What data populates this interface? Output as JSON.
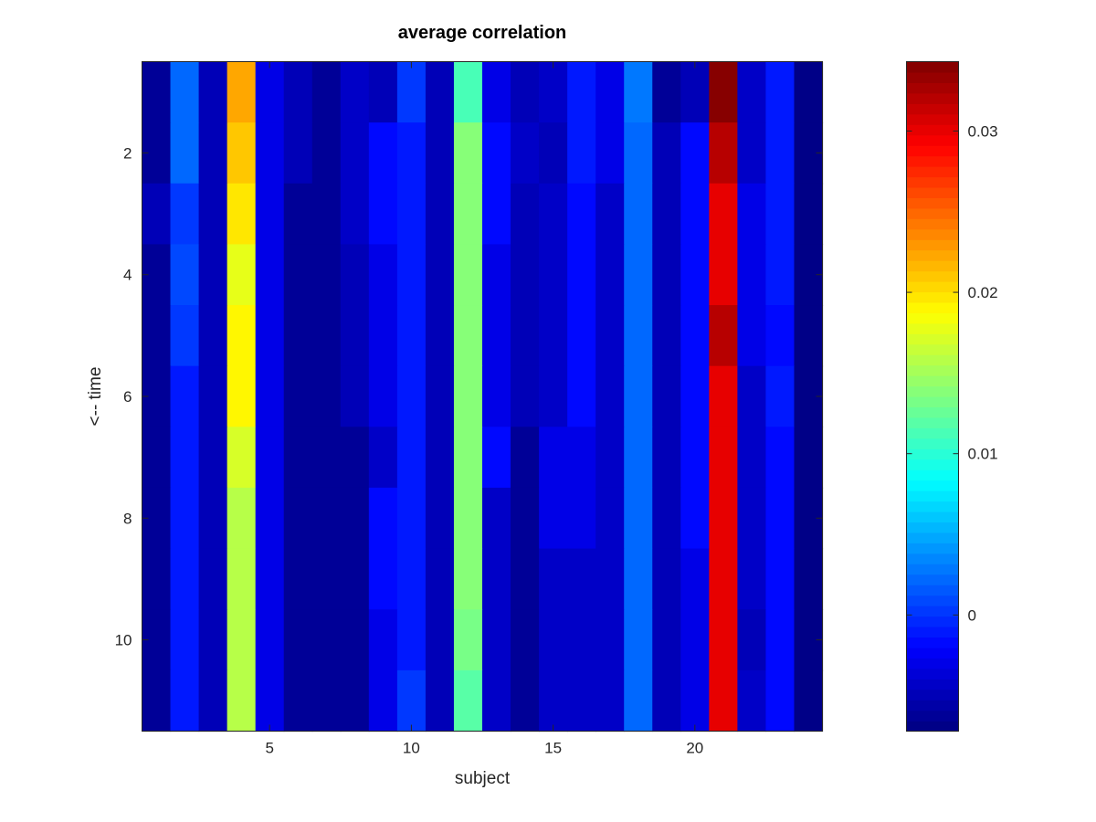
{
  "chart_data": {
    "type": "heatmap",
    "title": "average correlation",
    "xlabel": "subject",
    "ylabel": "<-- time",
    "colormap": "jet",
    "x": [
      1,
      2,
      3,
      4,
      5,
      6,
      7,
      8,
      9,
      10,
      11,
      12,
      13,
      14,
      15,
      16,
      17,
      18,
      19,
      20,
      21,
      22,
      23,
      24
    ],
    "y": [
      1,
      2,
      3,
      4,
      5,
      6,
      7,
      8,
      9,
      10,
      11
    ],
    "xlim": [
      0.5,
      24.5
    ],
    "ylim": [
      0.5,
      11.5
    ],
    "y_direction": "reverse",
    "xticks": [
      5,
      10,
      15,
      20
    ],
    "xtick_labels": [
      "5",
      "10",
      "15",
      "20"
    ],
    "yticks": [
      2,
      4,
      6,
      8,
      10
    ],
    "ytick_labels": [
      "2",
      "4",
      "6",
      "8",
      "10"
    ],
    "clim": [
      -0.0072,
      0.0343
    ],
    "colorbar": {
      "ticks": [
        0,
        0.01,
        0.02,
        0.03
      ],
      "tick_labels": [
        "0",
        "0.01",
        "0.02",
        "0.03"
      ],
      "position": "right"
    },
    "values": [
      [
        -0.006,
        0.002,
        -0.005,
        0.022,
        -0.003,
        -0.005,
        -0.006,
        -0.004,
        -0.005,
        0.0,
        -0.005,
        0.011,
        -0.003,
        -0.005,
        -0.004,
        -0.001,
        -0.003,
        0.003,
        -0.006,
        -0.005,
        0.034,
        -0.004,
        -0.001,
        -0.007
      ],
      [
        -0.006,
        0.002,
        -0.005,
        0.021,
        -0.003,
        -0.005,
        -0.006,
        -0.004,
        -0.002,
        -0.001,
        -0.005,
        0.014,
        -0.002,
        -0.004,
        -0.005,
        -0.001,
        -0.003,
        0.002,
        -0.005,
        -0.002,
        0.032,
        -0.004,
        -0.001,
        -0.007
      ],
      [
        -0.005,
        0.0,
        -0.005,
        0.02,
        -0.003,
        -0.006,
        -0.006,
        -0.004,
        -0.002,
        -0.001,
        -0.005,
        0.014,
        -0.002,
        -0.005,
        -0.004,
        -0.002,
        -0.004,
        0.002,
        -0.005,
        -0.002,
        0.03,
        -0.003,
        -0.001,
        -0.007
      ],
      [
        -0.006,
        0.001,
        -0.005,
        0.018,
        -0.003,
        -0.006,
        -0.006,
        -0.005,
        -0.003,
        -0.001,
        -0.005,
        0.014,
        -0.003,
        -0.005,
        -0.004,
        -0.002,
        -0.004,
        0.002,
        -0.005,
        -0.002,
        0.03,
        -0.003,
        -0.001,
        -0.007
      ],
      [
        -0.006,
        0.0,
        -0.005,
        0.019,
        -0.003,
        -0.006,
        -0.006,
        -0.005,
        -0.003,
        -0.001,
        -0.005,
        0.014,
        -0.003,
        -0.005,
        -0.004,
        -0.002,
        -0.004,
        0.002,
        -0.005,
        -0.002,
        0.032,
        -0.003,
        -0.002,
        -0.007
      ],
      [
        -0.006,
        -0.001,
        -0.005,
        0.019,
        -0.003,
        -0.006,
        -0.006,
        -0.005,
        -0.003,
        -0.001,
        -0.005,
        0.014,
        -0.003,
        -0.005,
        -0.004,
        -0.002,
        -0.004,
        0.002,
        -0.005,
        -0.002,
        0.03,
        -0.004,
        -0.001,
        -0.007
      ],
      [
        -0.006,
        -0.001,
        -0.005,
        0.017,
        -0.003,
        -0.006,
        -0.006,
        -0.006,
        -0.004,
        -0.001,
        -0.005,
        0.014,
        -0.002,
        -0.006,
        -0.003,
        -0.003,
        -0.004,
        0.002,
        -0.005,
        -0.002,
        0.03,
        -0.004,
        -0.002,
        -0.007
      ],
      [
        -0.006,
        -0.001,
        -0.005,
        0.016,
        -0.003,
        -0.006,
        -0.006,
        -0.006,
        -0.002,
        -0.001,
        -0.005,
        0.014,
        -0.004,
        -0.006,
        -0.003,
        -0.003,
        -0.004,
        0.002,
        -0.005,
        -0.002,
        0.03,
        -0.004,
        -0.002,
        -0.007
      ],
      [
        -0.006,
        -0.001,
        -0.005,
        0.016,
        -0.003,
        -0.006,
        -0.006,
        -0.006,
        -0.002,
        -0.001,
        -0.005,
        0.014,
        -0.004,
        -0.006,
        -0.004,
        -0.004,
        -0.004,
        0.002,
        -0.005,
        -0.003,
        0.03,
        -0.004,
        -0.002,
        -0.007
      ],
      [
        -0.006,
        -0.001,
        -0.005,
        0.016,
        -0.003,
        -0.006,
        -0.006,
        -0.006,
        -0.003,
        -0.001,
        -0.005,
        0.013,
        -0.004,
        -0.006,
        -0.004,
        -0.004,
        -0.004,
        0.002,
        -0.005,
        -0.003,
        0.03,
        -0.005,
        -0.002,
        -0.007
      ],
      [
        -0.006,
        -0.001,
        -0.005,
        0.016,
        -0.003,
        -0.006,
        -0.006,
        -0.006,
        -0.003,
        0.0,
        -0.005,
        0.012,
        -0.004,
        -0.006,
        -0.004,
        -0.004,
        -0.004,
        0.002,
        -0.005,
        -0.003,
        0.03,
        -0.004,
        -0.002,
        -0.007
      ]
    ]
  }
}
